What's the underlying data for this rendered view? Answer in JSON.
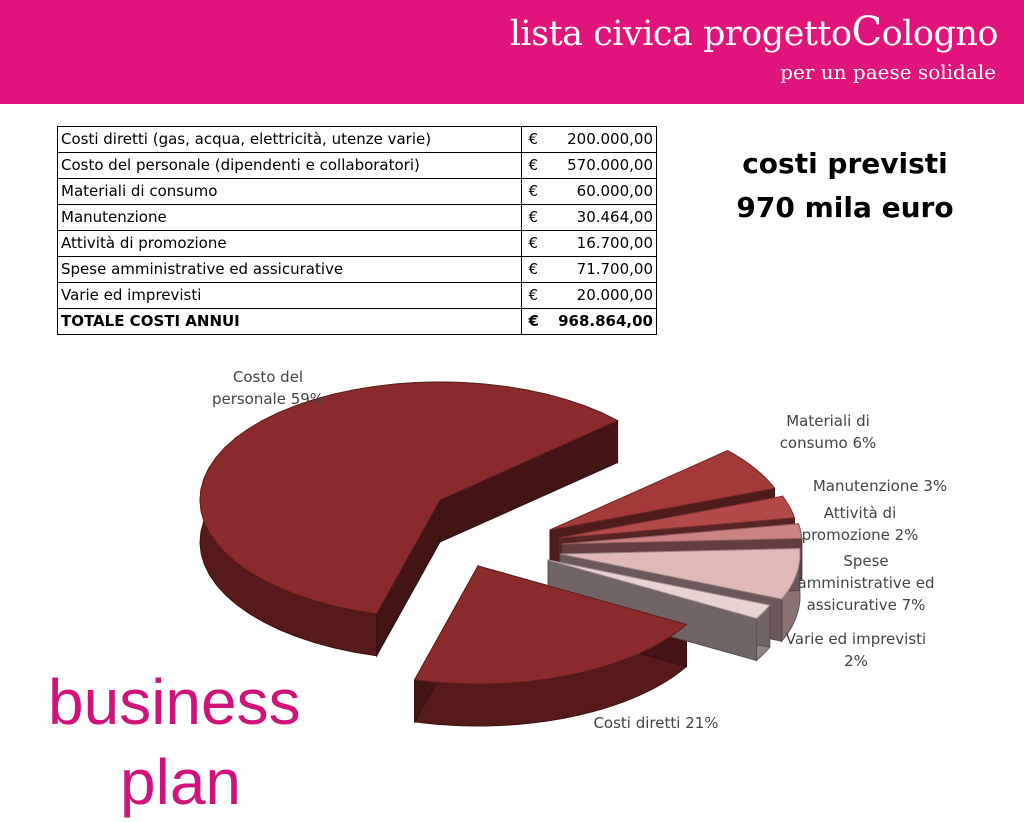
{
  "header": {
    "org_prefix": "lista civica progetto",
    "org_cap": "C",
    "org_suffix": "ologno",
    "tagline": "per un paese solidale"
  },
  "cost_table": {
    "rows": [
      {
        "label": "Costi diretti (gas, acqua, elettricità, utenze varie)",
        "currency": "€",
        "amount": "200.000,00"
      },
      {
        "label": "Costo del personale (dipendenti e collaboratori)",
        "currency": "€",
        "amount": "570.000,00"
      },
      {
        "label": "Materiali di consumo",
        "currency": "€",
        "amount": "60.000,00"
      },
      {
        "label": "Manutenzione",
        "currency": "€",
        "amount": "30.464,00"
      },
      {
        "label": "Attività di promozione",
        "currency": "€",
        "amount": "16.700,00"
      },
      {
        "label": "Spese amministrative ed assicurative",
        "currency": "€",
        "amount": "71.700,00"
      },
      {
        "label": "Varie ed imprevisti",
        "currency": "€",
        "amount": "20.000,00"
      }
    ],
    "total": {
      "label": "TOTALE COSTI ANNUI",
      "currency": "€",
      "amount": "968.864,00"
    }
  },
  "headline": {
    "line1": "costi previsti",
    "line2": "970 mila euro"
  },
  "title": {
    "line1": "business",
    "line2": "plan"
  },
  "chart_data": {
    "type": "pie",
    "labels": [
      [
        "Costo del",
        "personale 59%"
      ],
      [
        "Materiali di",
        "consumo 6%"
      ],
      [
        "Manutenzione 3%"
      ],
      [
        "Attività di",
        "promozione 2%"
      ],
      [
        "Spese",
        "amministrative ed",
        "assicurative 7%"
      ],
      [
        "Varie ed imprevisti",
        "2%"
      ],
      [
        "Costi diretti  21%"
      ]
    ],
    "slices": [
      {
        "category": "Costo del personale",
        "percent": 59,
        "color": "#8a2a2a"
      },
      {
        "category": "Materiali di consumo",
        "percent": 6,
        "color": "#a33a38"
      },
      {
        "category": "Manutenzione",
        "percent": 3,
        "color": "#b44a48"
      },
      {
        "category": "Attività di promozione",
        "percent": 2,
        "color": "#c98482"
      },
      {
        "category": "Spese amministrative ed assicurative",
        "percent": 7,
        "color": "#dfb8b7"
      },
      {
        "category": "Varie ed imprevisti",
        "percent": 2,
        "color": "#ead2d1"
      },
      {
        "category": "Costi diretti",
        "percent": 21,
        "color": "#8a2a2a"
      }
    ],
    "legend": "labels beside slices",
    "style": "3D exploded pie"
  }
}
